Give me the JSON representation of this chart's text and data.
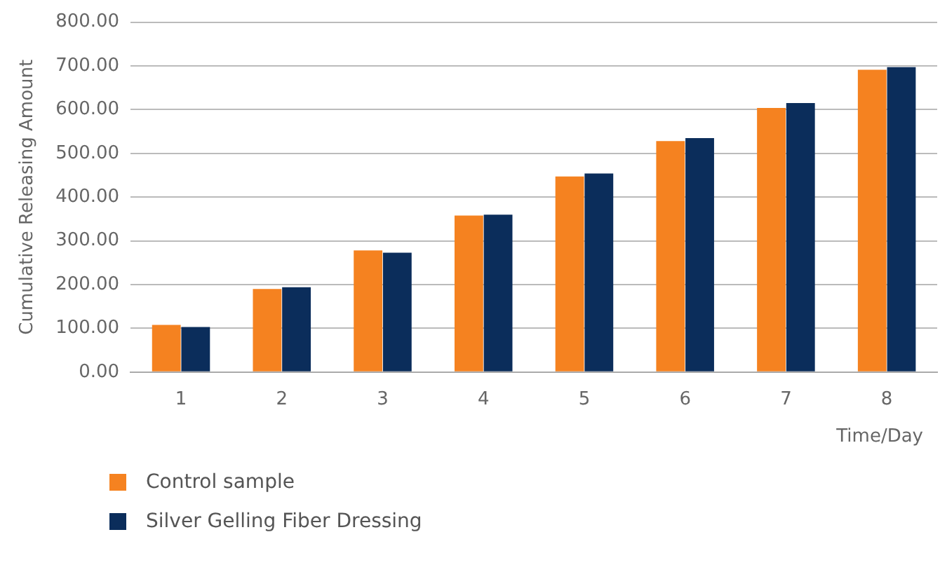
{
  "chart_data": {
    "type": "bar",
    "xlabel": "Time/Day",
    "ylabel": "Cumulative Releasing Amount",
    "categories": [
      "1",
      "2",
      "3",
      "4",
      "5",
      "6",
      "7",
      "8"
    ],
    "series": [
      {
        "name": "Control sample",
        "color": "#f58220",
        "values": [
          108,
          190,
          278,
          358,
          447,
          528,
          604,
          691
        ]
      },
      {
        "name": "Silver Gelling Fiber Dressing",
        "color": "#0b2d5b",
        "values": [
          103,
          194,
          273,
          360,
          454,
          535,
          615,
          697
        ]
      }
    ],
    "ylim": [
      0,
      800
    ],
    "yticks": [
      {
        "value": 0,
        "label": "0.00"
      },
      {
        "value": 100,
        "label": "100.00"
      },
      {
        "value": 200,
        "label": "200.00"
      },
      {
        "value": 300,
        "label": "300.00"
      },
      {
        "value": 400,
        "label": "400.00"
      },
      {
        "value": 500,
        "label": "500.00"
      },
      {
        "value": 600,
        "label": "600.00"
      },
      {
        "value": 700,
        "label": "700.00"
      },
      {
        "value": 800,
        "label": "800.00"
      }
    ],
    "grid": "y",
    "legend": "bottom"
  }
}
